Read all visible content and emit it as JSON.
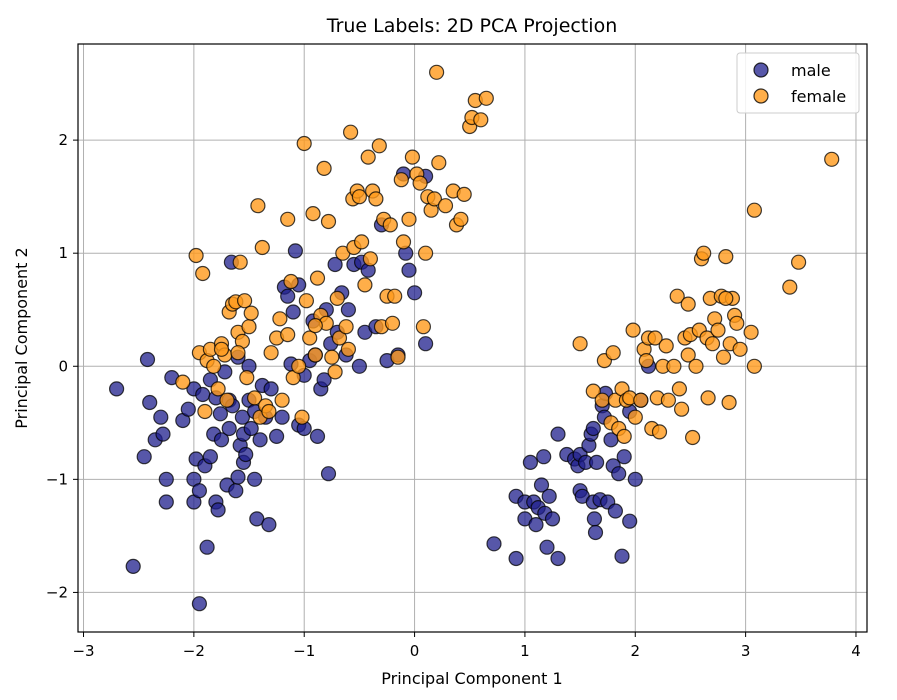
{
  "chart_data": {
    "type": "scatter",
    "title": "True Labels: 2D PCA Projection",
    "xlabel": "Principal Component 1",
    "ylabel": "Principal Component 2",
    "xlim": [
      -3.05,
      4.1
    ],
    "ylim": [
      -2.35,
      2.85
    ],
    "xticks": [
      -3,
      -2,
      -1,
      0,
      1,
      2,
      3,
      4
    ],
    "yticks": [
      -2,
      -1,
      0,
      1,
      2
    ],
    "xtick_labels": [
      "−3",
      "−2",
      "−1",
      "0",
      "1",
      "2",
      "3",
      "4"
    ],
    "ytick_labels": [
      "−2",
      "−1",
      "0",
      "1",
      "2"
    ],
    "grid": true,
    "legend_position": "top-right",
    "series": [
      {
        "name": "male",
        "color": "#1f1f8c",
        "points": [
          [
            -2.7,
            -0.2
          ],
          [
            -2.55,
            -1.77
          ],
          [
            -2.45,
            -0.8
          ],
          [
            -2.42,
            0.06
          ],
          [
            -2.4,
            -0.32
          ],
          [
            -2.35,
            -0.65
          ],
          [
            -2.3,
            -0.45
          ],
          [
            -2.28,
            -0.6
          ],
          [
            -2.25,
            -1.0
          ],
          [
            -2.25,
            -1.2
          ],
          [
            -2.2,
            -0.1
          ],
          [
            -2.1,
            -0.48
          ],
          [
            -2.05,
            -0.38
          ],
          [
            -2.0,
            -0.2
          ],
          [
            -2.0,
            -1.0
          ],
          [
            -2.0,
            -1.2
          ],
          [
            -1.98,
            -0.82
          ],
          [
            -1.95,
            -1.1
          ],
          [
            -1.95,
            -2.1
          ],
          [
            -1.92,
            -0.25
          ],
          [
            -1.9,
            -0.88
          ],
          [
            -1.88,
            -1.6
          ],
          [
            -1.85,
            -0.8
          ],
          [
            -1.85,
            -0.12
          ],
          [
            -1.82,
            -0.6
          ],
          [
            -1.8,
            -0.28
          ],
          [
            -1.8,
            -1.2
          ],
          [
            -1.78,
            -1.27
          ],
          [
            -1.76,
            -0.42
          ],
          [
            -1.75,
            -0.65
          ],
          [
            -1.72,
            -0.05
          ],
          [
            -1.7,
            -1.05
          ],
          [
            -1.68,
            -0.55
          ],
          [
            -1.68,
            -0.3
          ],
          [
            -1.66,
            0.92
          ],
          [
            -1.65,
            -0.35
          ],
          [
            -1.62,
            -1.1
          ],
          [
            -1.6,
            -0.98
          ],
          [
            -1.6,
            0.08
          ],
          [
            -1.58,
            -0.7
          ],
          [
            -1.56,
            -0.45
          ],
          [
            -1.55,
            -0.6
          ],
          [
            -1.55,
            -0.85
          ],
          [
            -1.53,
            -0.78
          ],
          [
            -1.5,
            -0.3
          ],
          [
            -1.5,
            0.0
          ],
          [
            -1.48,
            -0.55
          ],
          [
            -1.45,
            -0.4
          ],
          [
            -1.45,
            -1.0
          ],
          [
            -1.43,
            -1.35
          ],
          [
            -1.4,
            -0.65
          ],
          [
            -1.38,
            -0.17
          ],
          [
            -1.35,
            -0.45
          ],
          [
            -1.32,
            -1.4
          ],
          [
            -1.3,
            -0.2
          ],
          [
            -1.25,
            -0.62
          ],
          [
            -1.2,
            -0.45
          ],
          [
            -1.18,
            0.7
          ],
          [
            -1.15,
            0.62
          ],
          [
            -1.12,
            0.02
          ],
          [
            -1.1,
            0.48
          ],
          [
            -1.08,
            1.02
          ],
          [
            -1.05,
            0.72
          ],
          [
            -1.05,
            -0.52
          ],
          [
            -1.0,
            -0.55
          ],
          [
            -1.0,
            -0.08
          ],
          [
            -0.95,
            0.05
          ],
          [
            -0.92,
            0.4
          ],
          [
            -0.9,
            0.1
          ],
          [
            -0.88,
            -0.62
          ],
          [
            -0.85,
            -0.2
          ],
          [
            -0.82,
            -0.12
          ],
          [
            -0.8,
            0.5
          ],
          [
            -0.78,
            -0.95
          ],
          [
            -0.76,
            0.2
          ],
          [
            -0.72,
            0.9
          ],
          [
            -0.7,
            0.3
          ],
          [
            -0.66,
            0.65
          ],
          [
            -0.62,
            0.1
          ],
          [
            -0.6,
            0.5
          ],
          [
            -0.55,
            0.9
          ],
          [
            -0.5,
            0.0
          ],
          [
            -0.48,
            0.92
          ],
          [
            -0.45,
            0.3
          ],
          [
            -0.42,
            0.85
          ],
          [
            -0.35,
            0.35
          ],
          [
            -0.3,
            1.25
          ],
          [
            -0.25,
            0.05
          ],
          [
            -0.15,
            0.1
          ],
          [
            -0.1,
            1.7
          ],
          [
            -0.08,
            1.0
          ],
          [
            -0.05,
            0.85
          ],
          [
            0.0,
            0.65
          ],
          [
            0.1,
            0.2
          ],
          [
            0.1,
            1.68
          ],
          [
            0.92,
            -1.7
          ],
          [
            0.92,
            -1.15
          ],
          [
            1.0,
            -1.2
          ],
          [
            1.0,
            -1.35
          ],
          [
            1.05,
            -0.85
          ],
          [
            1.08,
            -1.2
          ],
          [
            1.1,
            -1.4
          ],
          [
            1.12,
            -1.25
          ],
          [
            1.15,
            -1.05
          ],
          [
            1.17,
            -0.8
          ],
          [
            1.18,
            -1.3
          ],
          [
            1.2,
            -1.6
          ],
          [
            1.22,
            -1.15
          ],
          [
            1.25,
            -1.35
          ],
          [
            1.3,
            -1.7
          ],
          [
            1.3,
            -0.6
          ],
          [
            1.38,
            -0.78
          ],
          [
            1.45,
            -0.82
          ],
          [
            1.48,
            -0.88
          ],
          [
            1.5,
            -1.1
          ],
          [
            1.5,
            -0.78
          ],
          [
            1.52,
            -1.15
          ],
          [
            1.55,
            -0.85
          ],
          [
            1.58,
            -0.7
          ],
          [
            1.6,
            -0.6
          ],
          [
            1.62,
            -0.55
          ],
          [
            1.62,
            -1.2
          ],
          [
            1.63,
            -1.35
          ],
          [
            1.64,
            -1.47
          ],
          [
            1.65,
            -0.85
          ],
          [
            1.68,
            -1.18
          ],
          [
            1.7,
            -0.35
          ],
          [
            1.72,
            -0.45
          ],
          [
            1.73,
            -0.24
          ],
          [
            1.75,
            -1.2
          ],
          [
            1.78,
            -0.65
          ],
          [
            1.8,
            -0.88
          ],
          [
            1.82,
            -1.28
          ],
          [
            1.85,
            -0.95
          ],
          [
            1.88,
            -1.68
          ],
          [
            1.9,
            -0.8
          ],
          [
            1.95,
            -0.4
          ],
          [
            1.95,
            -1.37
          ],
          [
            2.0,
            -1.0
          ],
          [
            2.05,
            -0.3
          ],
          [
            2.12,
            0.0
          ],
          [
            0.72,
            -1.57
          ]
        ]
      },
      {
        "name": "female",
        "color": "#ff9a1c",
        "points": [
          [
            -2.1,
            -0.14
          ],
          [
            -1.98,
            0.98
          ],
          [
            -1.95,
            0.12
          ],
          [
            -1.92,
            0.82
          ],
          [
            -1.9,
            -0.4
          ],
          [
            -1.88,
            0.05
          ],
          [
            -1.85,
            0.15
          ],
          [
            -1.82,
            0.0
          ],
          [
            -1.78,
            -0.2
          ],
          [
            -1.75,
            0.2
          ],
          [
            -1.72,
            0.1
          ],
          [
            -1.7,
            -0.3
          ],
          [
            -1.68,
            0.48
          ],
          [
            -1.65,
            0.55
          ],
          [
            -1.62,
            0.57
          ],
          [
            -1.6,
            0.3
          ],
          [
            -1.58,
            0.92
          ],
          [
            -1.56,
            0.22
          ],
          [
            -1.54,
            0.58
          ],
          [
            -1.52,
            -0.1
          ],
          [
            -1.5,
            0.35
          ],
          [
            -1.48,
            0.47
          ],
          [
            -1.45,
            -0.28
          ],
          [
            -1.42,
            1.42
          ],
          [
            -1.4,
            -0.45
          ],
          [
            -1.38,
            1.05
          ],
          [
            -1.35,
            -0.35
          ],
          [
            -1.32,
            -0.4
          ],
          [
            -1.3,
            0.12
          ],
          [
            -1.25,
            0.25
          ],
          [
            -1.22,
            0.42
          ],
          [
            -1.2,
            -0.3
          ],
          [
            -1.15,
            0.28
          ],
          [
            -1.15,
            1.3
          ],
          [
            -1.12,
            0.75
          ],
          [
            -1.1,
            -0.1
          ],
          [
            -1.05,
            0.0
          ],
          [
            -1.02,
            -0.45
          ],
          [
            -1.0,
            1.97
          ],
          [
            -0.98,
            0.58
          ],
          [
            -0.95,
            0.25
          ],
          [
            -0.92,
            1.35
          ],
          [
            -0.9,
            0.1
          ],
          [
            -0.88,
            0.78
          ],
          [
            -0.85,
            0.45
          ],
          [
            -0.82,
            1.75
          ],
          [
            -0.8,
            0.38
          ],
          [
            -0.78,
            1.28
          ],
          [
            -0.75,
            0.08
          ],
          [
            -0.72,
            -0.05
          ],
          [
            -0.7,
            0.6
          ],
          [
            -0.68,
            0.25
          ],
          [
            -0.65,
            1.0
          ],
          [
            -0.62,
            0.35
          ],
          [
            -0.6,
            0.15
          ],
          [
            -0.58,
            2.07
          ],
          [
            -0.56,
            1.48
          ],
          [
            -0.55,
            1.05
          ],
          [
            -0.52,
            1.55
          ],
          [
            -0.5,
            1.5
          ],
          [
            -0.48,
            1.1
          ],
          [
            -0.45,
            0.72
          ],
          [
            -0.42,
            1.85
          ],
          [
            -0.4,
            0.95
          ],
          [
            -0.38,
            1.55
          ],
          [
            -0.35,
            1.48
          ],
          [
            -0.32,
            1.95
          ],
          [
            -0.3,
            0.35
          ],
          [
            -0.28,
            1.3
          ],
          [
            -0.25,
            0.62
          ],
          [
            -0.22,
            1.25
          ],
          [
            -0.18,
            0.62
          ],
          [
            -0.15,
            0.08
          ],
          [
            -0.12,
            1.65
          ],
          [
            -0.1,
            1.1
          ],
          [
            -0.05,
            1.3
          ],
          [
            -0.02,
            1.85
          ],
          [
            0.02,
            1.7
          ],
          [
            0.05,
            1.62
          ],
          [
            0.08,
            0.35
          ],
          [
            0.12,
            1.5
          ],
          [
            0.15,
            1.38
          ],
          [
            0.18,
            1.48
          ],
          [
            0.22,
            1.8
          ],
          [
            0.28,
            1.42
          ],
          [
            0.35,
            1.55
          ],
          [
            0.38,
            1.25
          ],
          [
            0.42,
            1.3
          ],
          [
            0.45,
            1.52
          ],
          [
            0.5,
            2.12
          ],
          [
            0.52,
            2.2
          ],
          [
            0.55,
            2.35
          ],
          [
            0.6,
            2.18
          ],
          [
            0.65,
            2.37
          ],
          [
            0.2,
            2.6
          ],
          [
            0.1,
            1.0
          ],
          [
            -0.2,
            0.38
          ],
          [
            -0.9,
            0.36
          ],
          [
            -1.6,
            0.12
          ],
          [
            -1.75,
            0.15
          ],
          [
            1.5,
            0.2
          ],
          [
            1.62,
            -0.22
          ],
          [
            1.7,
            -0.3
          ],
          [
            1.72,
            0.05
          ],
          [
            1.78,
            -0.5
          ],
          [
            1.8,
            0.12
          ],
          [
            1.82,
            -0.3
          ],
          [
            1.85,
            -0.55
          ],
          [
            1.88,
            -0.2
          ],
          [
            1.9,
            -0.62
          ],
          [
            1.92,
            -0.3
          ],
          [
            1.95,
            -0.28
          ],
          [
            1.98,
            0.32
          ],
          [
            2.0,
            -0.45
          ],
          [
            2.05,
            -0.3
          ],
          [
            2.08,
            0.15
          ],
          [
            2.1,
            0.05
          ],
          [
            2.12,
            0.25
          ],
          [
            2.15,
            -0.55
          ],
          [
            2.18,
            0.25
          ],
          [
            2.2,
            -0.28
          ],
          [
            2.22,
            -0.58
          ],
          [
            2.25,
            0.0
          ],
          [
            2.28,
            0.18
          ],
          [
            2.3,
            -0.3
          ],
          [
            2.35,
            0.0
          ],
          [
            2.38,
            0.62
          ],
          [
            2.4,
            -0.2
          ],
          [
            2.42,
            -0.38
          ],
          [
            2.45,
            0.25
          ],
          [
            2.48,
            0.1
          ],
          [
            2.5,
            0.28
          ],
          [
            2.52,
            -0.63
          ],
          [
            2.55,
            0.0
          ],
          [
            2.58,
            0.32
          ],
          [
            2.6,
            0.95
          ],
          [
            2.62,
            1.0
          ],
          [
            2.65,
            0.25
          ],
          [
            2.66,
            -0.28
          ],
          [
            2.68,
            0.6
          ],
          [
            2.7,
            0.2
          ],
          [
            2.72,
            0.42
          ],
          [
            2.75,
            0.32
          ],
          [
            2.78,
            0.62
          ],
          [
            2.8,
            0.08
          ],
          [
            2.82,
            0.97
          ],
          [
            2.85,
            -0.32
          ],
          [
            2.86,
            0.2
          ],
          [
            2.88,
            0.6
          ],
          [
            2.9,
            0.45
          ],
          [
            2.92,
            0.38
          ],
          [
            2.95,
            0.15
          ],
          [
            3.05,
            0.3
          ],
          [
            3.08,
            1.38
          ],
          [
            3.08,
            0.0
          ],
          [
            3.4,
            0.7
          ],
          [
            3.48,
            0.92
          ],
          [
            3.78,
            1.83
          ],
          [
            2.82,
            0.6
          ],
          [
            2.48,
            0.55
          ]
        ]
      }
    ]
  }
}
